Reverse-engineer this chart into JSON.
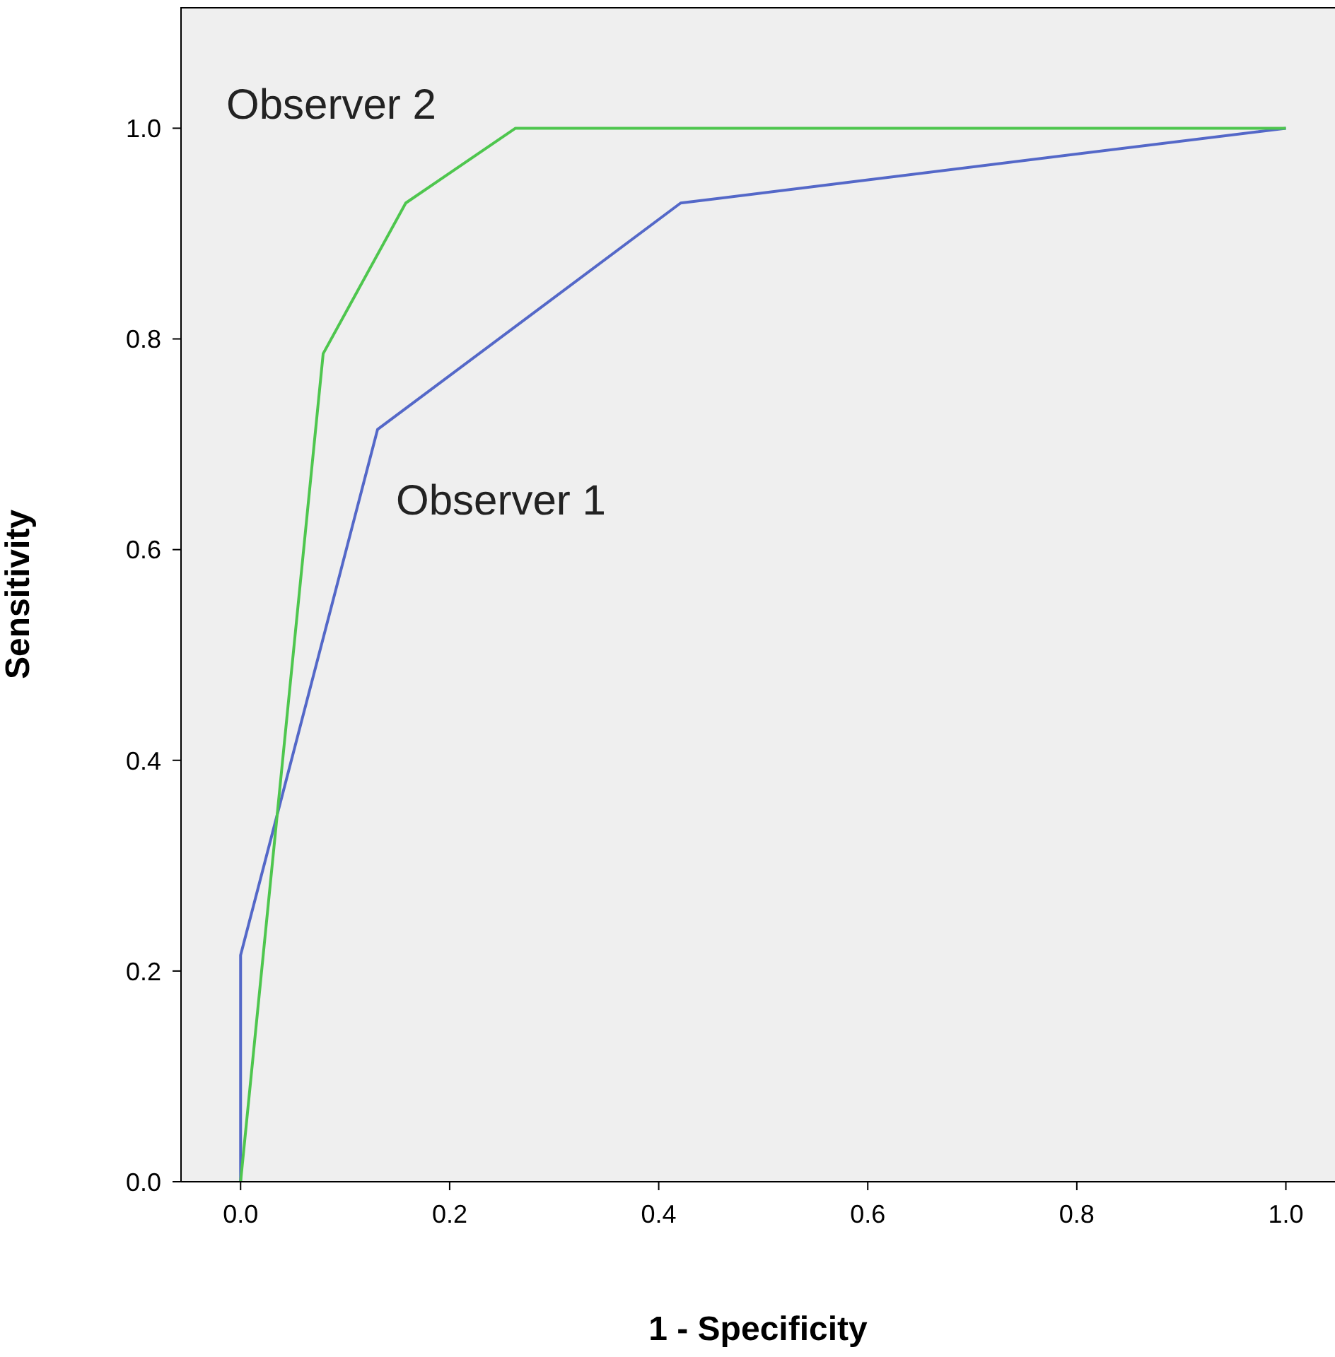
{
  "chart_data": {
    "type": "line",
    "xlabel": "1 - Specificity",
    "ylabel": "Sensitivity",
    "xlim": [
      -0.057,
      1.047
    ],
    "ylim": [
      0,
      1.115
    ],
    "xticks": [
      {
        "value": 0,
        "label": "0.0"
      },
      {
        "value": 0.2,
        "label": "0.2"
      },
      {
        "value": 0.4,
        "label": "0.4"
      },
      {
        "value": 0.6,
        "label": "0.6"
      },
      {
        "value": 0.8,
        "label": "0.8"
      },
      {
        "value": 1,
        "label": "1.0"
      }
    ],
    "yticks": [
      {
        "value": 0,
        "label": "0.0"
      },
      {
        "value": 0.2,
        "label": "0.2"
      },
      {
        "value": 0.4,
        "label": "0.4"
      },
      {
        "value": 0.6,
        "label": "0.6"
      },
      {
        "value": 0.8,
        "label": "0.8"
      },
      {
        "value": 1,
        "label": "1.0"
      }
    ],
    "series": [
      {
        "name": "Observer 1",
        "color": "#5468c8",
        "x": [
          0,
          0,
          0.131,
          0.421,
          1
        ],
        "values": [
          0,
          0.215,
          0.714,
          0.929,
          1
        ]
      },
      {
        "name": "Observer 2",
        "color": "#4ec64e",
        "x": [
          0,
          0.079,
          0.158,
          0.263,
          1
        ],
        "values": [
          0,
          0.786,
          0.929,
          1,
          1
        ]
      }
    ],
    "marker": "none",
    "line_style": "solid"
  }
}
